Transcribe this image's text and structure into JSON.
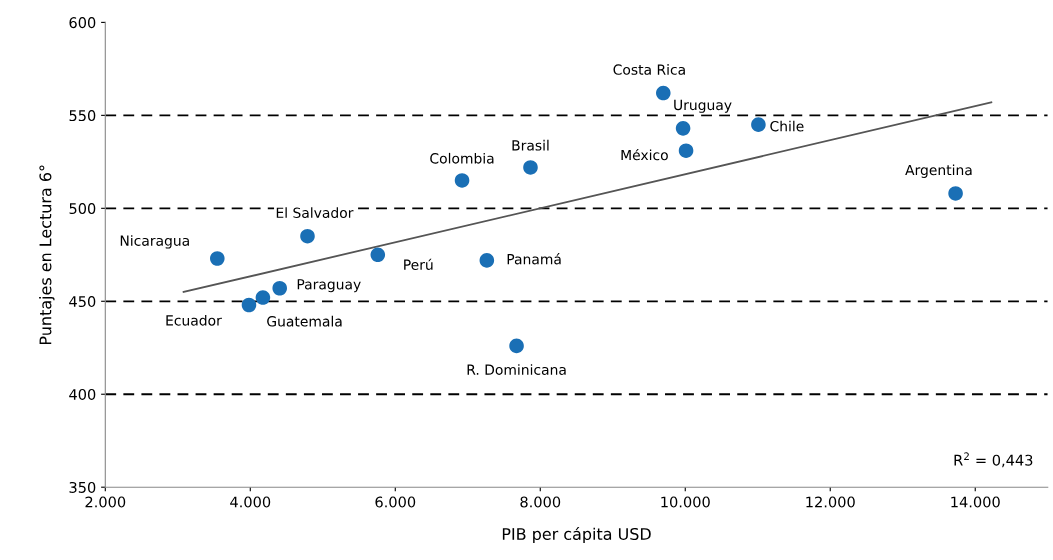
{
  "chart_data": {
    "type": "scatter",
    "xlabel": "PIB per cápita USD",
    "ylabel": "Puntajes en Lectura 6°",
    "series": [
      {
        "color": "#1a6fb5",
        "marker": "circle",
        "x": [
          3545,
          3982,
          4174,
          4406,
          4789,
          5759,
          6921,
          7865,
          7263,
          7673,
          9697,
          9970,
          10011,
          11009,
          13729
        ],
        "values": [
          473,
          448,
          452,
          457,
          485,
          475,
          515,
          522,
          472,
          426,
          562,
          543,
          531,
          545,
          508
        ]
      },
      {
        "type": "line",
        "color": "#555555",
        "x": [
          3080,
          14222
        ],
        "values": [
          455,
          557
        ]
      }
    ],
    "xlim": [
      2000,
      15000
    ],
    "ylim": [
      350,
      600
    ],
    "xticks": [
      {
        "value": 2000,
        "label": "2.000"
      },
      {
        "value": 4000,
        "label": "4.000"
      },
      {
        "value": 6000,
        "label": "6.000"
      },
      {
        "value": 8000,
        "label": "8.000"
      },
      {
        "value": 10000,
        "label": "10.000"
      },
      {
        "value": 12000,
        "label": "12.000"
      },
      {
        "value": 14000,
        "label": "14.000"
      }
    ],
    "yticks": [
      350,
      400,
      450,
      500,
      550,
      600
    ],
    "ref_lines": [
      {
        "axis": "y",
        "value": 400,
        "color": "#000000",
        "line_style": "dashed"
      },
      {
        "axis": "y",
        "value": 450,
        "color": "#000000",
        "line_style": "dashed"
      },
      {
        "axis": "y",
        "value": 500,
        "color": "#000000",
        "line_style": "dashed"
      },
      {
        "axis": "y",
        "value": 550,
        "color": "#000000",
        "line_style": "dashed"
      }
    ],
    "annotations": [
      {
        "text": "Nicaragua",
        "x": 3545,
        "y": 473
      },
      {
        "text": "Ecuador",
        "x": 3982,
        "y": 448
      },
      {
        "text": "Guatemala",
        "x": 4174,
        "y": 452
      },
      {
        "text": "Paraguay",
        "x": 4406,
        "y": 457
      },
      {
        "text": "El Salvador",
        "x": 4789,
        "y": 485
      },
      {
        "text": "Perú",
        "x": 5759,
        "y": 475
      },
      {
        "text": "Colombia",
        "x": 6921,
        "y": 515
      },
      {
        "text": "Brasil",
        "x": 7865,
        "y": 522
      },
      {
        "text": "Panamá",
        "x": 7263,
        "y": 472
      },
      {
        "text": "R. Dominicana",
        "x": 7673,
        "y": 426
      },
      {
        "text": "Costa Rica",
        "x": 9697,
        "y": 562
      },
      {
        "text": "Uruguay",
        "x": 9970,
        "y": 543
      },
      {
        "text": "México",
        "x": 10011,
        "y": 531
      },
      {
        "text": "Chile",
        "x": 11009,
        "y": 545
      },
      {
        "text": "Argentina",
        "x": 13729,
        "y": 508
      },
      "R$^{2}$ = 0,443"
    ]
  }
}
